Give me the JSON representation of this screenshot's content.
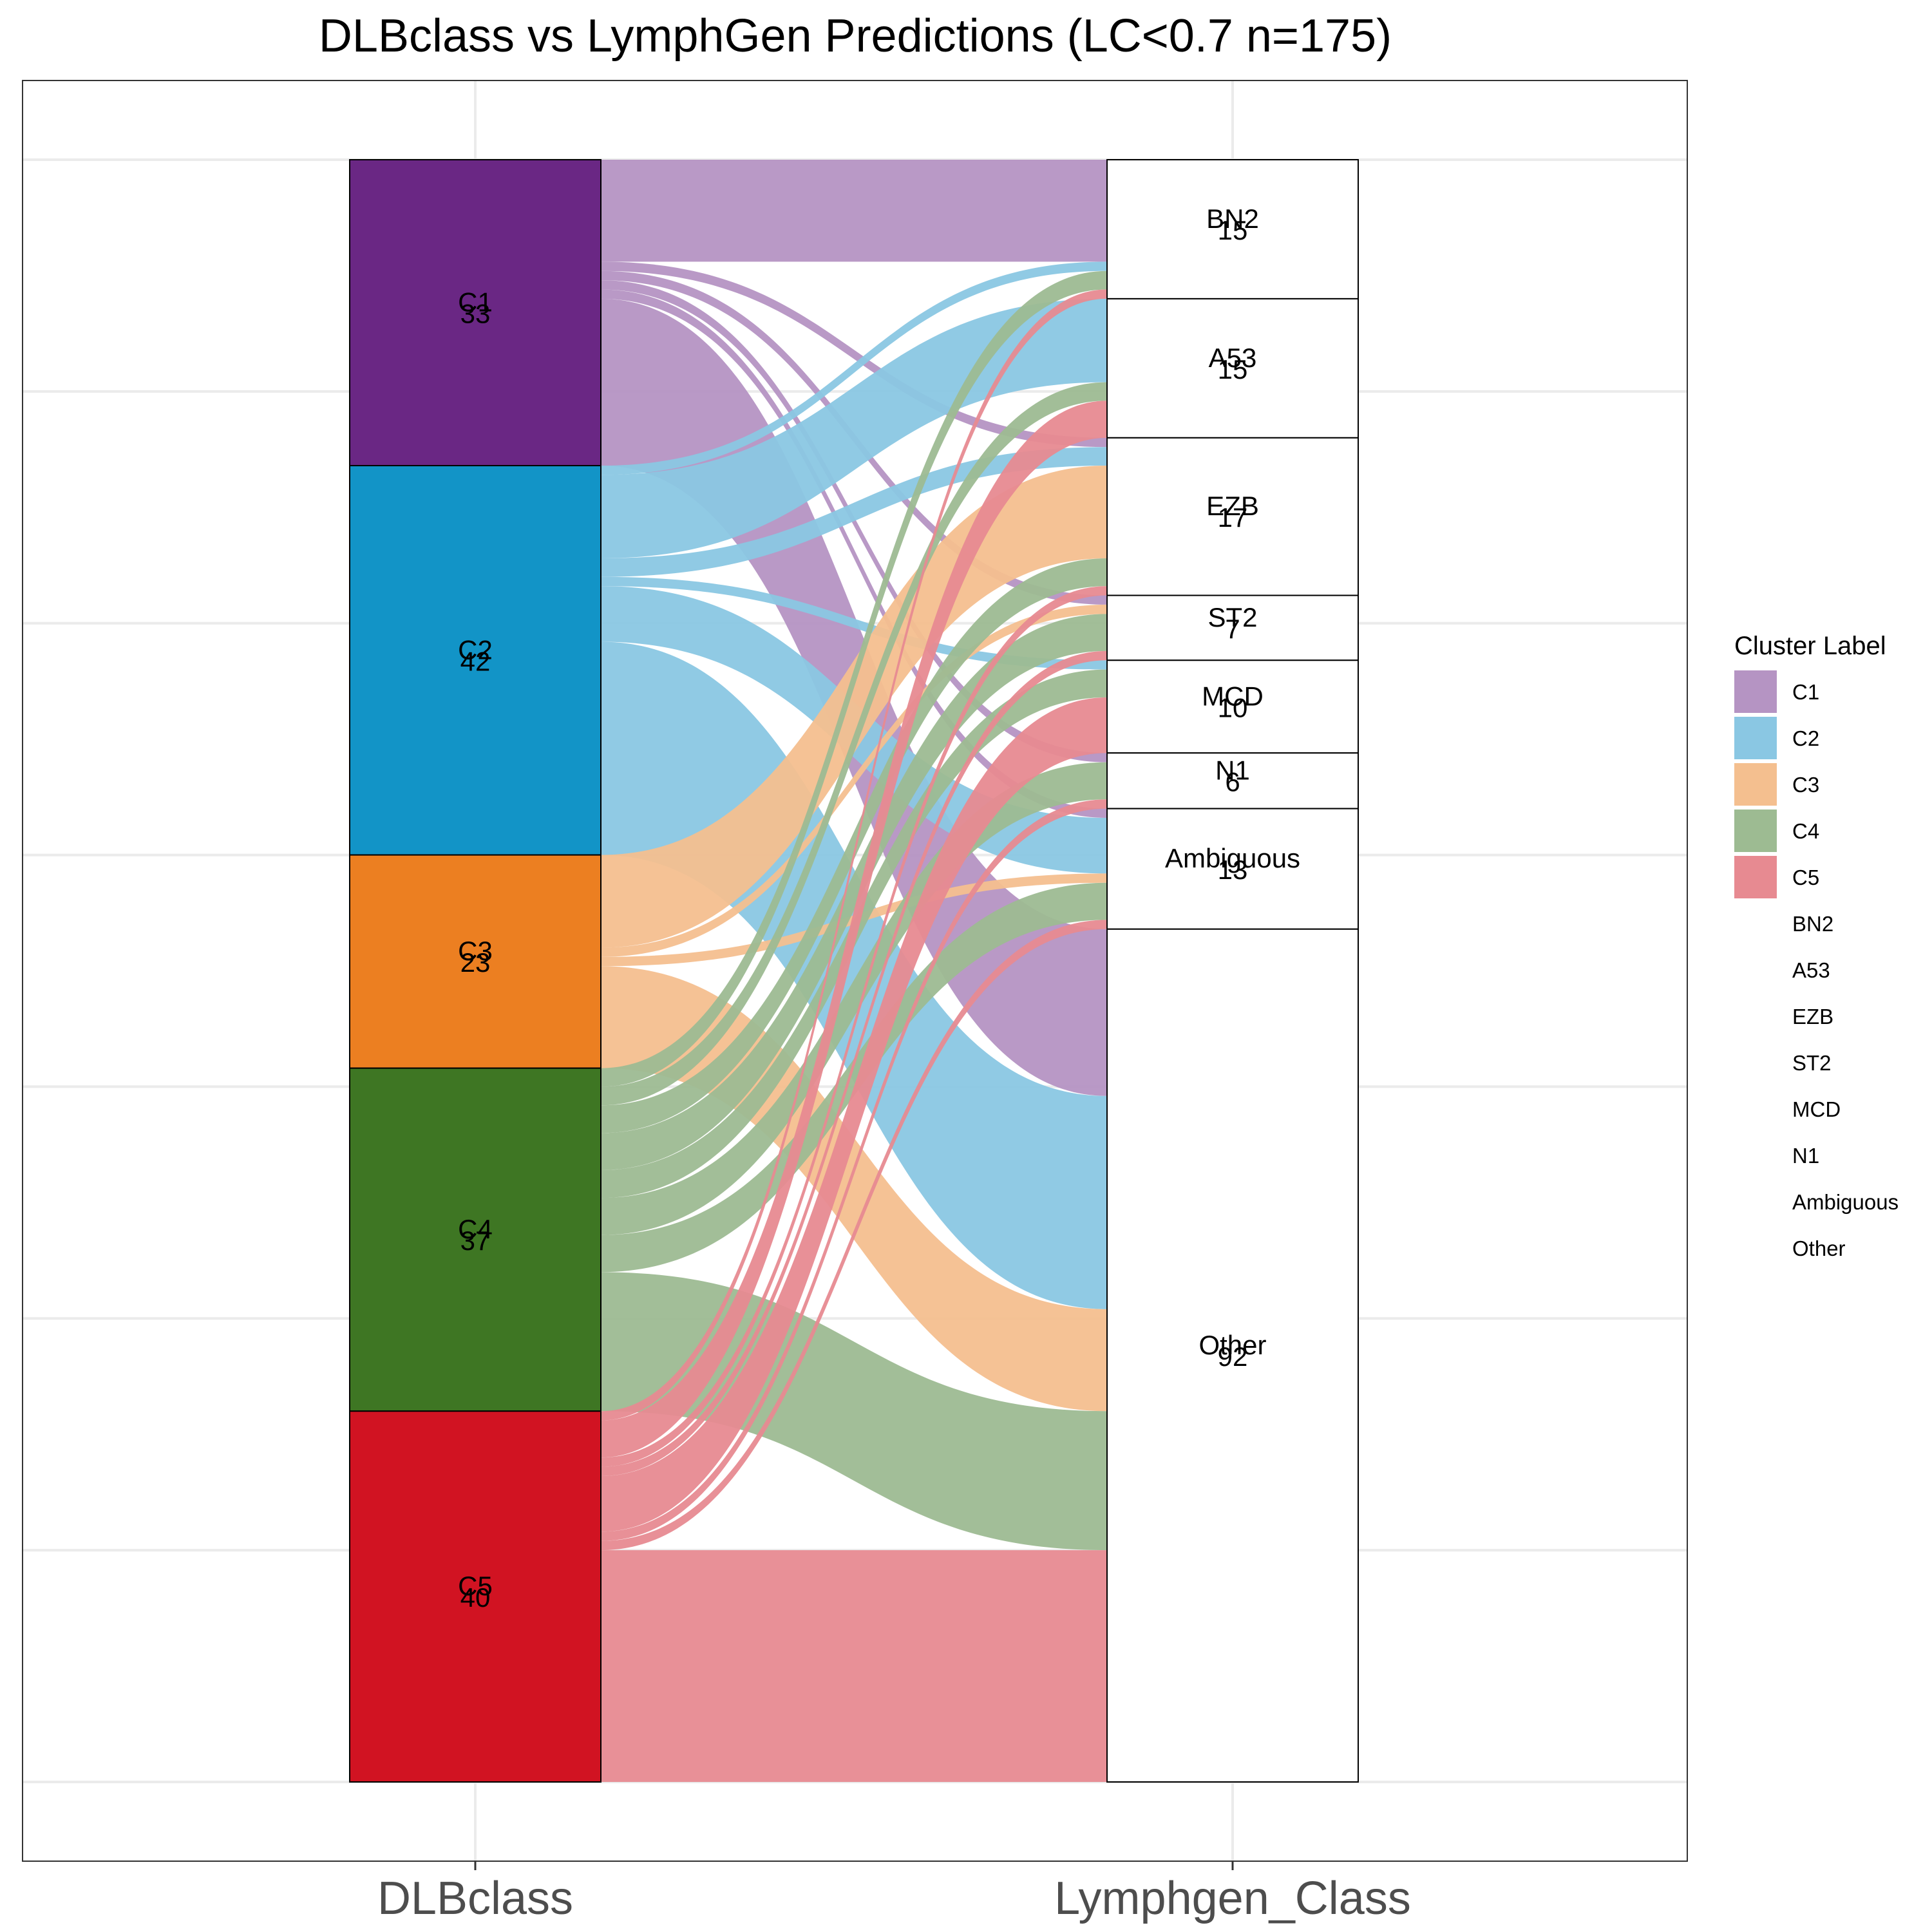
{
  "chart_data": {
    "type": "alluvial",
    "title": "DLBclass vs LymphGen Predictions (LC<0.7 n=175)",
    "axes": [
      "DLBclass",
      "Lymphgen_Class"
    ],
    "axis1_strata": [
      {
        "label": "C1",
        "count": "33",
        "color": "#6a2784"
      },
      {
        "label": "C2",
        "count": "42",
        "color": "#1294c7"
      },
      {
        "label": "C3",
        "count": "23",
        "color": "#ec7f21"
      },
      {
        "label": "C4",
        "count": "37",
        "color": "#3e7623"
      },
      {
        "label": "C5",
        "count": "40",
        "color": "#d11322"
      }
    ],
    "axis2_strata": [
      {
        "label": "BN2",
        "count": "15"
      },
      {
        "label": "A53",
        "count": "15"
      },
      {
        "label": "EZB",
        "count": "17"
      },
      {
        "label": "ST2",
        "count": "7"
      },
      {
        "label": "MCD",
        "count": "10"
      },
      {
        "label": "N1",
        "count": "6"
      },
      {
        "label": "Ambiguous",
        "count": "13"
      },
      {
        "label": "Other",
        "count": "92"
      }
    ],
    "flow_colors": {
      "C1": "#b594c3",
      "C2": "#8ac7e3",
      "C3": "#f4bf8f",
      "C4": "#9dbb92",
      "C5": "#e78a91"
    },
    "flows": [
      {
        "from": "C1",
        "to": "BN2",
        "value": 11
      },
      {
        "from": "C1",
        "to": "EZB",
        "value": 1
      },
      {
        "from": "C1",
        "to": "ST2",
        "value": 1
      },
      {
        "from": "C1",
        "to": "N1",
        "value": 1
      },
      {
        "from": "C1",
        "to": "Ambiguous",
        "value": 1
      },
      {
        "from": "C1",
        "to": "Other",
        "value": 18
      },
      {
        "from": "C2",
        "to": "BN2",
        "value": 1
      },
      {
        "from": "C2",
        "to": "A53",
        "value": 9
      },
      {
        "from": "C2",
        "to": "EZB",
        "value": 2
      },
      {
        "from": "C2",
        "to": "MCD",
        "value": 1
      },
      {
        "from": "C2",
        "to": "Ambiguous",
        "value": 6
      },
      {
        "from": "C2",
        "to": "Other",
        "value": 23
      },
      {
        "from": "C3",
        "to": "EZB",
        "value": 10
      },
      {
        "from": "C3",
        "to": "ST2",
        "value": 1
      },
      {
        "from": "C3",
        "to": "Ambiguous",
        "value": 1
      },
      {
        "from": "C3",
        "to": "Other",
        "value": 11
      },
      {
        "from": "C4",
        "to": "BN2",
        "value": 2
      },
      {
        "from": "C4",
        "to": "A53",
        "value": 2
      },
      {
        "from": "C4",
        "to": "EZB",
        "value": 3
      },
      {
        "from": "C4",
        "to": "ST2",
        "value": 4
      },
      {
        "from": "C4",
        "to": "MCD",
        "value": 3
      },
      {
        "from": "C4",
        "to": "N1",
        "value": 4
      },
      {
        "from": "C4",
        "to": "Ambiguous",
        "value": 4
      },
      {
        "from": "C4",
        "to": "Other",
        "value": 15
      },
      {
        "from": "C5",
        "to": "BN2",
        "value": 1
      },
      {
        "from": "C5",
        "to": "A53",
        "value": 4
      },
      {
        "from": "C5",
        "to": "EZB",
        "value": 1
      },
      {
        "from": "C5",
        "to": "ST2",
        "value": 1
      },
      {
        "from": "C5",
        "to": "MCD",
        "value": 6
      },
      {
        "from": "C5",
        "to": "N1",
        "value": 1
      },
      {
        "from": "C5",
        "to": "Ambiguous",
        "value": 1
      },
      {
        "from": "C5",
        "to": "Other",
        "value": 25
      }
    ],
    "total": 175,
    "grid": true,
    "legend": {
      "title": "Cluster Label",
      "position": "right",
      "items": [
        "C1",
        "C2",
        "C3",
        "C4",
        "C5",
        "BN2",
        "A53",
        "EZB",
        "ST2",
        "MCD",
        "N1",
        "Ambiguous",
        "Other"
      ]
    }
  }
}
